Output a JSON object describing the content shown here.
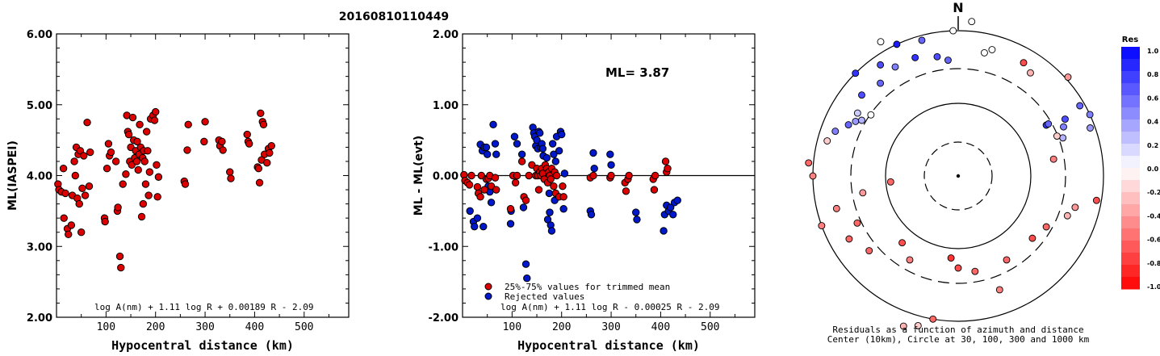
{
  "title": "20160810110449",
  "chart_data": [
    {
      "type": "scatter",
      "xlabel": "Hypocentral distance (km)",
      "ylabel": "ML(IASPEI)",
      "xlim": [
        0,
        590
      ],
      "ylim": [
        2.0,
        6.0
      ],
      "x_ticks": [
        "100",
        "200",
        "300",
        "400",
        "500"
      ],
      "y_ticks": [
        "2.00",
        "3.00",
        "4.00",
        "5.00",
        "6.00"
      ],
      "formula": "log A(nm) + 1.11 log R + 0.00189 R - 2.09",
      "points": [
        [
          3,
          3.88
        ],
        [
          5,
          3.8
        ],
        [
          10,
          3.77
        ],
        [
          14,
          4.1
        ],
        [
          15,
          3.4
        ],
        [
          18,
          3.75
        ],
        [
          22,
          3.25
        ],
        [
          24,
          3.17
        ],
        [
          30,
          3.3
        ],
        [
          32,
          3.72
        ],
        [
          36,
          4.2
        ],
        [
          38,
          4.0
        ],
        [
          40,
          4.4
        ],
        [
          42,
          3.68
        ],
        [
          44,
          4.3
        ],
        [
          46,
          3.6
        ],
        [
          48,
          4.35
        ],
        [
          50,
          3.2
        ],
        [
          52,
          3.82
        ],
        [
          55,
          4.28
        ],
        [
          58,
          3.72
        ],
        [
          62,
          4.75
        ],
        [
          66,
          3.85
        ],
        [
          68,
          4.33
        ],
        [
          97,
          3.4
        ],
        [
          98,
          3.35
        ],
        [
          102,
          4.1
        ],
        [
          105,
          4.45
        ],
        [
          107,
          4.28
        ],
        [
          110,
          4.33
        ],
        [
          120,
          4.2
        ],
        [
          123,
          3.5
        ],
        [
          124,
          3.55
        ],
        [
          128,
          2.86
        ],
        [
          130,
          2.7
        ],
        [
          134,
          3.88
        ],
        [
          140,
          4.02
        ],
        [
          142,
          4.85
        ],
        [
          144,
          4.62
        ],
        [
          146,
          4.58
        ],
        [
          148,
          4.2
        ],
        [
          150,
          4.4
        ],
        [
          152,
          4.15
        ],
        [
          154,
          4.82
        ],
        [
          156,
          4.5
        ],
        [
          158,
          4.25
        ],
        [
          160,
          4.35
        ],
        [
          162,
          4.2
        ],
        [
          163,
          4.48
        ],
        [
          165,
          4.08
        ],
        [
          167,
          4.3
        ],
        [
          168,
          4.72
        ],
        [
          170,
          4.4
        ],
        [
          172,
          3.42
        ],
        [
          174,
          4.25
        ],
        [
          175,
          3.6
        ],
        [
          176,
          4.35
        ],
        [
          178,
          4.2
        ],
        [
          180,
          3.88
        ],
        [
          182,
          4.62
        ],
        [
          184,
          4.35
        ],
        [
          186,
          3.72
        ],
        [
          188,
          4.05
        ],
        [
          190,
          4.8
        ],
        [
          195,
          4.85
        ],
        [
          198,
          4.78
        ],
        [
          200,
          4.9
        ],
        [
          202,
          4.15
        ],
        [
          204,
          3.7
        ],
        [
          206,
          3.98
        ],
        [
          258,
          3.92
        ],
        [
          260,
          3.88
        ],
        [
          264,
          4.36
        ],
        [
          266,
          4.72
        ],
        [
          298,
          4.48
        ],
        [
          300,
          4.76
        ],
        [
          328,
          4.5
        ],
        [
          330,
          4.42
        ],
        [
          334,
          4.48
        ],
        [
          336,
          4.36
        ],
        [
          350,
          4.05
        ],
        [
          352,
          3.96
        ],
        [
          385,
          4.58
        ],
        [
          387,
          4.48
        ],
        [
          389,
          4.45
        ],
        [
          406,
          4.12
        ],
        [
          408,
          4.1
        ],
        [
          410,
          3.9
        ],
        [
          412,
          4.88
        ],
        [
          414,
          4.22
        ],
        [
          416,
          4.76
        ],
        [
          418,
          4.72
        ],
        [
          420,
          4.3
        ],
        [
          425,
          4.18
        ],
        [
          428,
          4.38
        ],
        [
          430,
          4.32
        ],
        [
          434,
          4.42
        ]
      ]
    },
    {
      "type": "scatter",
      "xlabel": "Hypocentral distance (km)",
      "ylabel": "ML - ML(evt)",
      "xlim": [
        0,
        590
      ],
      "ylim": [
        -2.0,
        2.0
      ],
      "x_ticks": [
        "100",
        "200",
        "300",
        "400",
        "500"
      ],
      "y_ticks": [
        "-2.00",
        "-1.00",
        "0.00",
        "1.00",
        "2.00"
      ],
      "annotation": "ML= 3.87",
      "formula": "log A(nm) + 1.11 log R - 0.00025 R - 2.09",
      "legend": [
        {
          "label": "25%-75% values for trimmed mean",
          "color": "#dd0000"
        },
        {
          "label": "Rejected values",
          "color": "#0018cc"
        }
      ],
      "points_used": [
        [
          3,
          0.01
        ],
        [
          5,
          -0.07
        ],
        [
          10,
          -0.1
        ],
        [
          14,
          -0.13
        ],
        [
          18,
          0.0
        ],
        [
          30,
          -0.16
        ],
        [
          32,
          -0.25
        ],
        [
          36,
          -0.3
        ],
        [
          38,
          0.0
        ],
        [
          44,
          -0.2
        ],
        [
          48,
          -0.05
        ],
        [
          52,
          -0.04
        ],
        [
          55,
          0.0
        ],
        [
          58,
          -0.15
        ],
        [
          66,
          -0.03
        ],
        [
          68,
          -0.2
        ],
        [
          97,
          -0.47
        ],
        [
          102,
          0.0
        ],
        [
          107,
          -0.1
        ],
        [
          110,
          0.0
        ],
        [
          120,
          0.2
        ],
        [
          124,
          -0.3
        ],
        [
          128,
          -0.35
        ],
        [
          134,
          0.0
        ],
        [
          140,
          0.15
        ],
        [
          148,
          0.0
        ],
        [
          150,
          0.1
        ],
        [
          152,
          0.0
        ],
        [
          154,
          -0.2
        ],
        [
          156,
          0.05
        ],
        [
          158,
          0.0
        ],
        [
          160,
          0.1
        ],
        [
          162,
          0.03
        ],
        [
          165,
          -0.05
        ],
        [
          167,
          0.15
        ],
        [
          170,
          0.1
        ],
        [
          172,
          -0.1
        ],
        [
          174,
          0.05
        ],
        [
          176,
          0.0
        ],
        [
          178,
          -0.05
        ],
        [
          180,
          0.1
        ],
        [
          184,
          -0.15
        ],
        [
          186,
          0.05
        ],
        [
          188,
          -0.25
        ],
        [
          190,
          0.0
        ],
        [
          195,
          -0.3
        ],
        [
          202,
          -0.15
        ],
        [
          204,
          -0.3
        ],
        [
          258,
          -0.03
        ],
        [
          264,
          0.0
        ],
        [
          298,
          -0.03
        ],
        [
          300,
          0.0
        ],
        [
          328,
          -0.1
        ],
        [
          330,
          -0.22
        ],
        [
          334,
          -0.05
        ],
        [
          336,
          0.0
        ],
        [
          385,
          -0.05
        ],
        [
          387,
          -0.2
        ],
        [
          389,
          0.0
        ],
        [
          410,
          0.2
        ],
        [
          412,
          0.05
        ],
        [
          414,
          0.1
        ]
      ],
      "points_rejected": [
        [
          36,
          0.44
        ],
        [
          40,
          0.35
        ],
        [
          44,
          0.4
        ],
        [
          48,
          0.4
        ],
        [
          50,
          0.3
        ],
        [
          52,
          -0.15
        ],
        [
          55,
          -0.23
        ],
        [
          58,
          -0.38
        ],
        [
          62,
          0.72
        ],
        [
          66,
          0.45
        ],
        [
          68,
          0.3
        ],
        [
          15,
          -0.5
        ],
        [
          22,
          -0.65
        ],
        [
          24,
          -0.72
        ],
        [
          30,
          -0.6
        ],
        [
          42,
          -0.72
        ],
        [
          97,
          -0.68
        ],
        [
          98,
          -0.5
        ],
        [
          105,
          0.55
        ],
        [
          110,
          0.45
        ],
        [
          120,
          0.3
        ],
        [
          123,
          -0.45
        ],
        [
          128,
          -1.25
        ],
        [
          130,
          -1.45
        ],
        [
          142,
          0.68
        ],
        [
          144,
          0.6
        ],
        [
          146,
          0.55
        ],
        [
          148,
          0.42
        ],
        [
          150,
          0.5
        ],
        [
          152,
          0.38
        ],
        [
          154,
          0.62
        ],
        [
          156,
          0.6
        ],
        [
          158,
          0.4
        ],
        [
          160,
          0.45
        ],
        [
          162,
          0.38
        ],
        [
          163,
          0.28
        ],
        [
          168,
          0.1
        ],
        [
          170,
          0.25
        ],
        [
          172,
          -0.62
        ],
        [
          175,
          -0.25
        ],
        [
          176,
          -0.52
        ],
        [
          178,
          -0.7
        ],
        [
          180,
          -0.78
        ],
        [
          182,
          0.45
        ],
        [
          184,
          0.3
        ],
        [
          186,
          -0.35
        ],
        [
          188,
          0.2
        ],
        [
          190,
          0.55
        ],
        [
          195,
          0.35
        ],
        [
          198,
          0.62
        ],
        [
          200,
          0.58
        ],
        [
          204,
          -0.47
        ],
        [
          206,
          0.03
        ],
        [
          258,
          -0.5
        ],
        [
          260,
          -0.55
        ],
        [
          264,
          0.32
        ],
        [
          266,
          0.1
        ],
        [
          298,
          0.3
        ],
        [
          300,
          0.15
        ],
        [
          350,
          -0.52
        ],
        [
          352,
          -0.62
        ],
        [
          406,
          -0.78
        ],
        [
          408,
          -0.55
        ],
        [
          412,
          -0.42
        ],
        [
          416,
          -0.5
        ],
        [
          420,
          -0.45
        ],
        [
          425,
          -0.55
        ],
        [
          428,
          -0.38
        ],
        [
          434,
          -0.35
        ]
      ]
    },
    {
      "type": "scatter",
      "subtype": "polar",
      "north_label": "N",
      "caption_line1": "Residuals as a function of azimuth and distance",
      "caption_line2": "Center (10km), Circle at 30, 100, 300 and 1000 km",
      "colorbar_title": "Res",
      "colorbar_ticks": [
        "1.0",
        "0.8",
        "0.6",
        "0.4",
        "0.2",
        "0.0",
        "-0.2",
        "-0.4",
        "-0.6",
        "-0.8",
        "-1.0"
      ],
      "points": [
        [
          12,
          260,
          0.0
        ],
        [
          15,
          270,
          0.0
        ],
        [
          60,
          210,
          0.8
        ],
        [
          62,
          250,
          0.7
        ],
        [
          65,
          240,
          0.5
        ],
        [
          60,
          215,
          0.6
        ],
        [
          70,
          230,
          0.3
        ],
        [
          68,
          220,
          -0.2
        ],
        [
          110,
          240,
          -0.3
        ],
        [
          80,
          200,
          -0.5
        ],
        [
          120,
          210,
          -0.6
        ],
        [
          130,
          200,
          -0.7
        ],
        [
          150,
          200,
          -0.6
        ],
        [
          160,
          250,
          -0.5
        ],
        [
          170,
          200,
          -0.6
        ],
        [
          180,
          190,
          -0.7
        ],
        [
          185,
          170,
          -0.8
        ],
        [
          190,
          300,
          -0.6
        ],
        [
          195,
          320,
          -0.2
        ],
        [
          200,
          330,
          -0.3
        ],
        [
          210,
          200,
          -0.5
        ],
        [
          220,
          180,
          -0.7
        ],
        [
          230,
          240,
          -0.6
        ],
        [
          240,
          260,
          -0.6
        ],
        [
          245,
          230,
          -0.6
        ],
        [
          250,
          300,
          -0.5
        ],
        [
          255,
          260,
          -0.5
        ],
        [
          260,
          200,
          -0.4
        ],
        [
          265,
          140,
          -0.6
        ],
        [
          270,
          300,
          -0.5
        ],
        [
          275,
          310,
          -0.6
        ],
        [
          285,
          280,
          -0.2
        ],
        [
          290,
          270,
          0.5
        ],
        [
          295,
          250,
          0.6
        ],
        [
          298,
          240,
          0.4
        ],
        [
          300,
          230,
          0.3
        ],
        [
          302,
          245,
          0.2
        ],
        [
          305,
          220,
          0.0
        ],
        [
          310,
          260,
          0.7
        ],
        [
          315,
          300,
          0.8
        ],
        [
          320,
          250,
          0.6
        ],
        [
          325,
          280,
          0.7
        ],
        [
          330,
          260,
          0.5
        ],
        [
          335,
          300,
          0.9
        ],
        [
          340,
          260,
          0.8
        ],
        [
          345,
          290,
          0.6
        ],
        [
          350,
          250,
          0.7
        ],
        [
          355,
          240,
          0.6
        ],
        [
          358,
          300,
          0.0
        ],
        [
          5,
          320,
          0.0
        ],
        [
          330,
          320,
          0.0
        ],
        [
          30,
          270,
          -0.7
        ],
        [
          35,
          260,
          -0.3
        ],
        [
          60,
          290,
          0.6
        ],
        [
          65,
          300,
          0.5
        ],
        [
          70,
          290,
          0.4
        ],
        [
          48,
          305,
          -0.4
        ],
        [
          100,
          290,
          -0.7
        ],
        [
          105,
          250,
          -0.4
        ]
      ]
    }
  ]
}
